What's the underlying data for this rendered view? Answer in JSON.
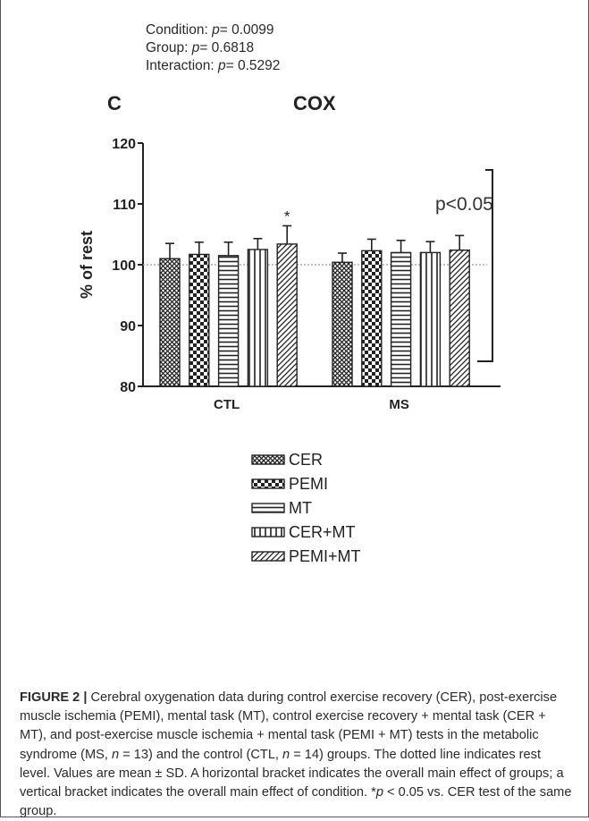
{
  "stats": {
    "condition_label": "Condition: ",
    "condition_p": "p",
    "condition_value": "= 0.0099",
    "group_label": "Group: ",
    "group_p": "p",
    "group_value": "= 0.6818",
    "interaction_label": "Interaction: ",
    "interaction_p": "p",
    "interaction_value": "= 0.5292"
  },
  "panel_letter": "C",
  "chart_data": {
    "type": "bar",
    "title": "COX",
    "ylabel": "% of rest",
    "xlabel": "",
    "ylim": [
      80,
      120
    ],
    "yticks": [
      80,
      90,
      100,
      110,
      120
    ],
    "categories": [
      "CTL",
      "MS"
    ],
    "reference_line": 100,
    "grid": false,
    "legend_position": "bottom",
    "series": [
      {
        "name": "CER",
        "values": [
          101.0,
          100.4
        ],
        "errors": [
          2.5,
          1.5
        ],
        "pattern": "cross-hatch"
      },
      {
        "name": "PEMI",
        "values": [
          101.7,
          102.3
        ],
        "errors": [
          2.0,
          1.9
        ],
        "pattern": "checker"
      },
      {
        "name": "MT",
        "values": [
          101.5,
          102.0
        ],
        "errors": [
          2.2,
          2.0
        ],
        "pattern": "horizontal-lines"
      },
      {
        "name": "CER+MT",
        "values": [
          102.5,
          102.0
        ],
        "errors": [
          1.8,
          1.8
        ],
        "pattern": "vertical-lines"
      },
      {
        "name": "PEMI+MT",
        "values": [
          103.4,
          102.4
        ],
        "errors": [
          3.0,
          2.4
        ],
        "pattern": "diagonal-lines"
      }
    ],
    "annotations": [
      {
        "text": "*",
        "category": "CTL",
        "series": "PEMI+MT"
      },
      {
        "text": "p<0.05",
        "type": "vertical-bracket"
      }
    ]
  },
  "caption": {
    "label": "FIGURE 2 |",
    "text1": " Cerebral oxygenation data during control exercise recovery (CER), post-exercise muscle ischemia (PEMI), mental task (MT), control exercise recovery + mental task (CER + MT), and post-exercise muscle ischemia + mental task (PEMI + MT) tests in the metabolic syndrome (MS, ",
    "n_ms_var": "n",
    "n_ms_value": " = 13) and the control (CTL, ",
    "n_ctl_var": "n",
    "n_ctl_value": " = 14) groups. The dotted line indicates rest level. Values are mean ± SD. A horizontal bracket indicates the overall main effect of groups; a vertical bracket indicates the overall main effect of condition. *",
    "p_var": "p",
    "text2": " < 0.05 vs. CER test of the same group."
  }
}
